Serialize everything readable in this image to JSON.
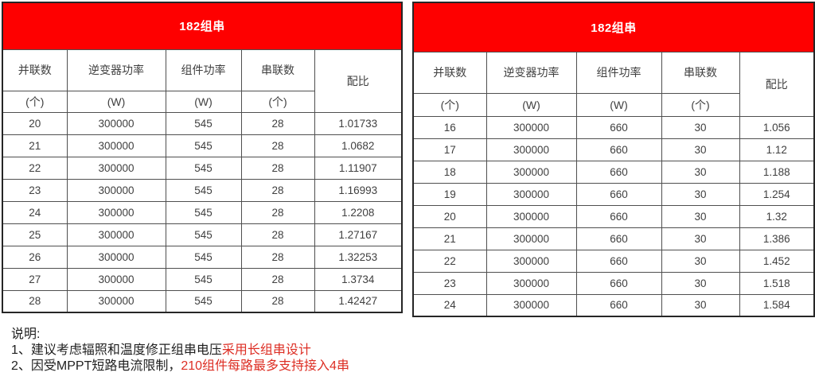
{
  "colors": {
    "header_bg": "#fe0000",
    "note_red": "#dd2e24",
    "grid_line": "#4f4f4f",
    "cell_text": "#3f3f3f"
  },
  "tables": [
    {
      "title": "182组串",
      "columns": [
        {
          "label": "并联数",
          "unit": "(个)"
        },
        {
          "label": "逆变器功率",
          "unit": "(W)"
        },
        {
          "label": "组件功率",
          "unit": "(W)"
        },
        {
          "label": "串联数",
          "unit": "(个)"
        },
        {
          "label": "配比",
          "unit": ""
        }
      ],
      "rows": [
        [
          "20",
          "300000",
          "545",
          "28",
          "1.01733"
        ],
        [
          "21",
          "300000",
          "545",
          "28",
          "1.0682"
        ],
        [
          "22",
          "300000",
          "545",
          "28",
          "1.11907"
        ],
        [
          "23",
          "300000",
          "545",
          "28",
          "1.16993"
        ],
        [
          "24",
          "300000",
          "545",
          "28",
          "1.2208"
        ],
        [
          "25",
          "300000",
          "545",
          "28",
          "1.27167"
        ],
        [
          "26",
          "300000",
          "545",
          "28",
          "1.32253"
        ],
        [
          "27",
          "300000",
          "545",
          "28",
          "1.3734"
        ],
        [
          "28",
          "300000",
          "545",
          "28",
          "1.42427"
        ]
      ]
    },
    {
      "title": "182组串",
      "columns": [
        {
          "label": "并联数",
          "unit": "(个)"
        },
        {
          "label": "逆变器功率",
          "unit": "(W)"
        },
        {
          "label": "组件功率",
          "unit": "(W)"
        },
        {
          "label": "串联数",
          "unit": "(个)"
        },
        {
          "label": "配比",
          "unit": ""
        }
      ],
      "rows": [
        [
          "16",
          "300000",
          "660",
          "30",
          "1.056"
        ],
        [
          "17",
          "300000",
          "660",
          "30",
          "1.12"
        ],
        [
          "18",
          "300000",
          "660",
          "30",
          "1.188"
        ],
        [
          "19",
          "300000",
          "660",
          "30",
          "1.254"
        ],
        [
          "20",
          "300000",
          "660",
          "30",
          "1.32"
        ],
        [
          "21",
          "300000",
          "660",
          "30",
          "1.386"
        ],
        [
          "22",
          "300000",
          "660",
          "30",
          "1.452"
        ],
        [
          "23",
          "300000",
          "660",
          "30",
          "1.518"
        ],
        [
          "24",
          "300000",
          "660",
          "30",
          "1.584"
        ]
      ]
    }
  ],
  "notes": {
    "heading": "说明:",
    "line1_black": "1、建议考虑辐照和温度修正组串电压",
    "line1_red": "采用长组串设计",
    "line2_black": "2、因受MPPT短路电流限制，",
    "line2_red": "210组件每路最多支持接入4串"
  }
}
